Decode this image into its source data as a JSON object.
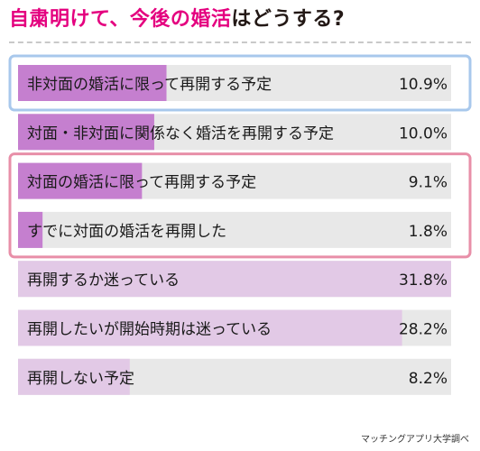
{
  "title": {
    "part1": "自粛明けて、",
    "part2": "今後の婚活",
    "part3": "はどうする?"
  },
  "source": "マッチングアプリ大学調べ",
  "colors": {
    "title_accent": "#e4007f",
    "title_text": "#231815",
    "bar_track": "#e8e8e8",
    "bar_highlight": "#c57fcf",
    "bar_light": "#e2c9e6",
    "box_blue": "#a8c8ec",
    "box_pink": "#e88fa8"
  },
  "chart_data": {
    "type": "bar",
    "orientation": "horizontal",
    "categories": [
      "非対面の婚活に限って再開する予定",
      "対面・非対面に関係なく婚活を再開する予定",
      "対面の婚活に限って再開する予定",
      "すでに対面の婚活を再開した",
      "再開するか迷っている",
      "再開したいが開始時期は迷っている",
      "再開しない予定"
    ],
    "values": [
      10.9,
      10.0,
      9.1,
      1.8,
      31.8,
      28.2,
      8.2
    ],
    "value_labels": [
      "10.9%",
      "10.0%",
      "9.1%",
      "1.8%",
      "31.8%",
      "28.2%",
      "8.2%"
    ],
    "unit": "%",
    "xlim": [
      0,
      31.8
    ],
    "highlight_groups": [
      {
        "color": "blue",
        "categories": [
          0
        ]
      },
      {
        "color": "pink",
        "categories": [
          2,
          3
        ]
      }
    ]
  }
}
